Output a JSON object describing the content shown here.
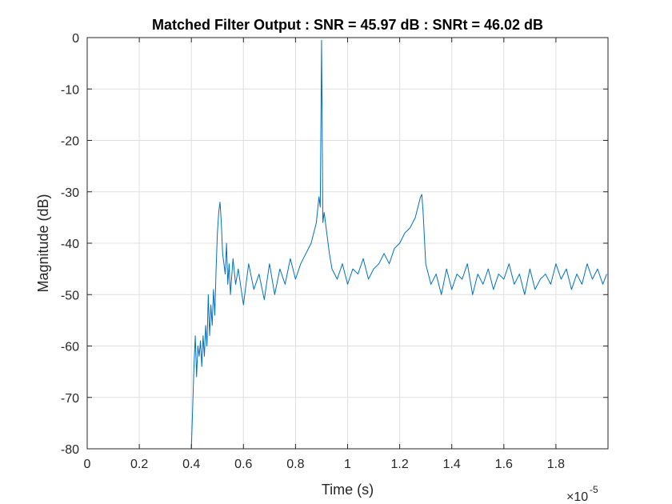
{
  "chart_data": {
    "type": "line",
    "title": "Matched Filter Output : SNR = 45.97 dB : SNRt = 46.02 dB",
    "xlabel": "Time (s)",
    "ylabel": "Magnitude (dB)",
    "x_exponent_label": {
      "base": "×10",
      "exponent": "-5"
    },
    "xlim": [
      0,
      2.0
    ],
    "ylim": [
      -80,
      0
    ],
    "x_ticks": [
      0,
      0.2,
      0.4,
      0.6,
      0.8,
      1,
      1.2,
      1.4,
      1.6,
      1.8
    ],
    "x_tick_labels": [
      "0",
      "0.2",
      "0.4",
      "0.6",
      "0.8",
      "1",
      "1.2",
      "1.4",
      "1.6",
      "1.8"
    ],
    "y_ticks": [
      0,
      -10,
      -20,
      -30,
      -40,
      -50,
      -60,
      -70,
      -80
    ],
    "y_tick_labels": [
      "0",
      "-10",
      "-20",
      "-30",
      "-40",
      "-50",
      "-60",
      "-70",
      "-80"
    ],
    "grid": true,
    "box": true,
    "series": [
      {
        "color": "#0072BD",
        "x": [
          0.4,
          0.405,
          0.41,
          0.415,
          0.42,
          0.425,
          0.43,
          0.435,
          0.44,
          0.445,
          0.45,
          0.455,
          0.46,
          0.465,
          0.47,
          0.475,
          0.48,
          0.485,
          0.49,
          0.495,
          0.5,
          0.505,
          0.51,
          0.515,
          0.52,
          0.525,
          0.53,
          0.535,
          0.54,
          0.545,
          0.55,
          0.56,
          0.57,
          0.58,
          0.6,
          0.62,
          0.64,
          0.66,
          0.68,
          0.7,
          0.72,
          0.74,
          0.76,
          0.78,
          0.8,
          0.82,
          0.84,
          0.86,
          0.87,
          0.88,
          0.89,
          0.895,
          0.9,
          0.905,
          0.91,
          0.92,
          0.93,
          0.94,
          0.96,
          0.98,
          1.0,
          1.02,
          1.04,
          1.06,
          1.08,
          1.1,
          1.12,
          1.14,
          1.16,
          1.18,
          1.2,
          1.22,
          1.24,
          1.26,
          1.27,
          1.28,
          1.285,
          1.29,
          1.3,
          1.32,
          1.34,
          1.36,
          1.38,
          1.4,
          1.42,
          1.44,
          1.46,
          1.48,
          1.5,
          1.52,
          1.54,
          1.56,
          1.58,
          1.6,
          1.62,
          1.64,
          1.66,
          1.68,
          1.7,
          1.72,
          1.74,
          1.76,
          1.78,
          1.8,
          1.82,
          1.84,
          1.86,
          1.88,
          1.9,
          1.92,
          1.94,
          1.96,
          1.98,
          1.995
        ],
        "y": [
          -80,
          -72,
          -64,
          -58,
          -66,
          -60,
          -62,
          -59,
          -64,
          -58,
          -62,
          -56,
          -60,
          -50,
          -58,
          -52,
          -56,
          -49,
          -54,
          -45,
          -38,
          -34,
          -32,
          -36,
          -42,
          -44,
          -46,
          -40,
          -48,
          -44,
          -50,
          -43,
          -48,
          -45,
          -52,
          -44,
          -49,
          -46,
          -51,
          -44,
          -50,
          -45,
          -48,
          -43,
          -47,
          -44,
          -42,
          -40,
          -38,
          -36,
          -31,
          -33,
          -0.5,
          -36,
          -34,
          -38,
          -42,
          -45,
          -47,
          -44,
          -48,
          -45,
          -46,
          -43,
          -47,
          -45,
          -44,
          -42,
          -44,
          -41,
          -40,
          -38,
          -37,
          -35,
          -33,
          -31,
          -30.5,
          -34,
          -44,
          -48,
          -46,
          -50,
          -45,
          -49,
          -46,
          -47,
          -44,
          -50,
          -46,
          -48,
          -45,
          -49,
          -46,
          -47,
          -44,
          -48,
          -46,
          -50,
          -45,
          -49,
          -47,
          -46,
          -48,
          -44,
          -47,
          -45,
          -49,
          -46,
          -48,
          -44,
          -47,
          -45,
          -48,
          -46
        ]
      }
    ]
  }
}
